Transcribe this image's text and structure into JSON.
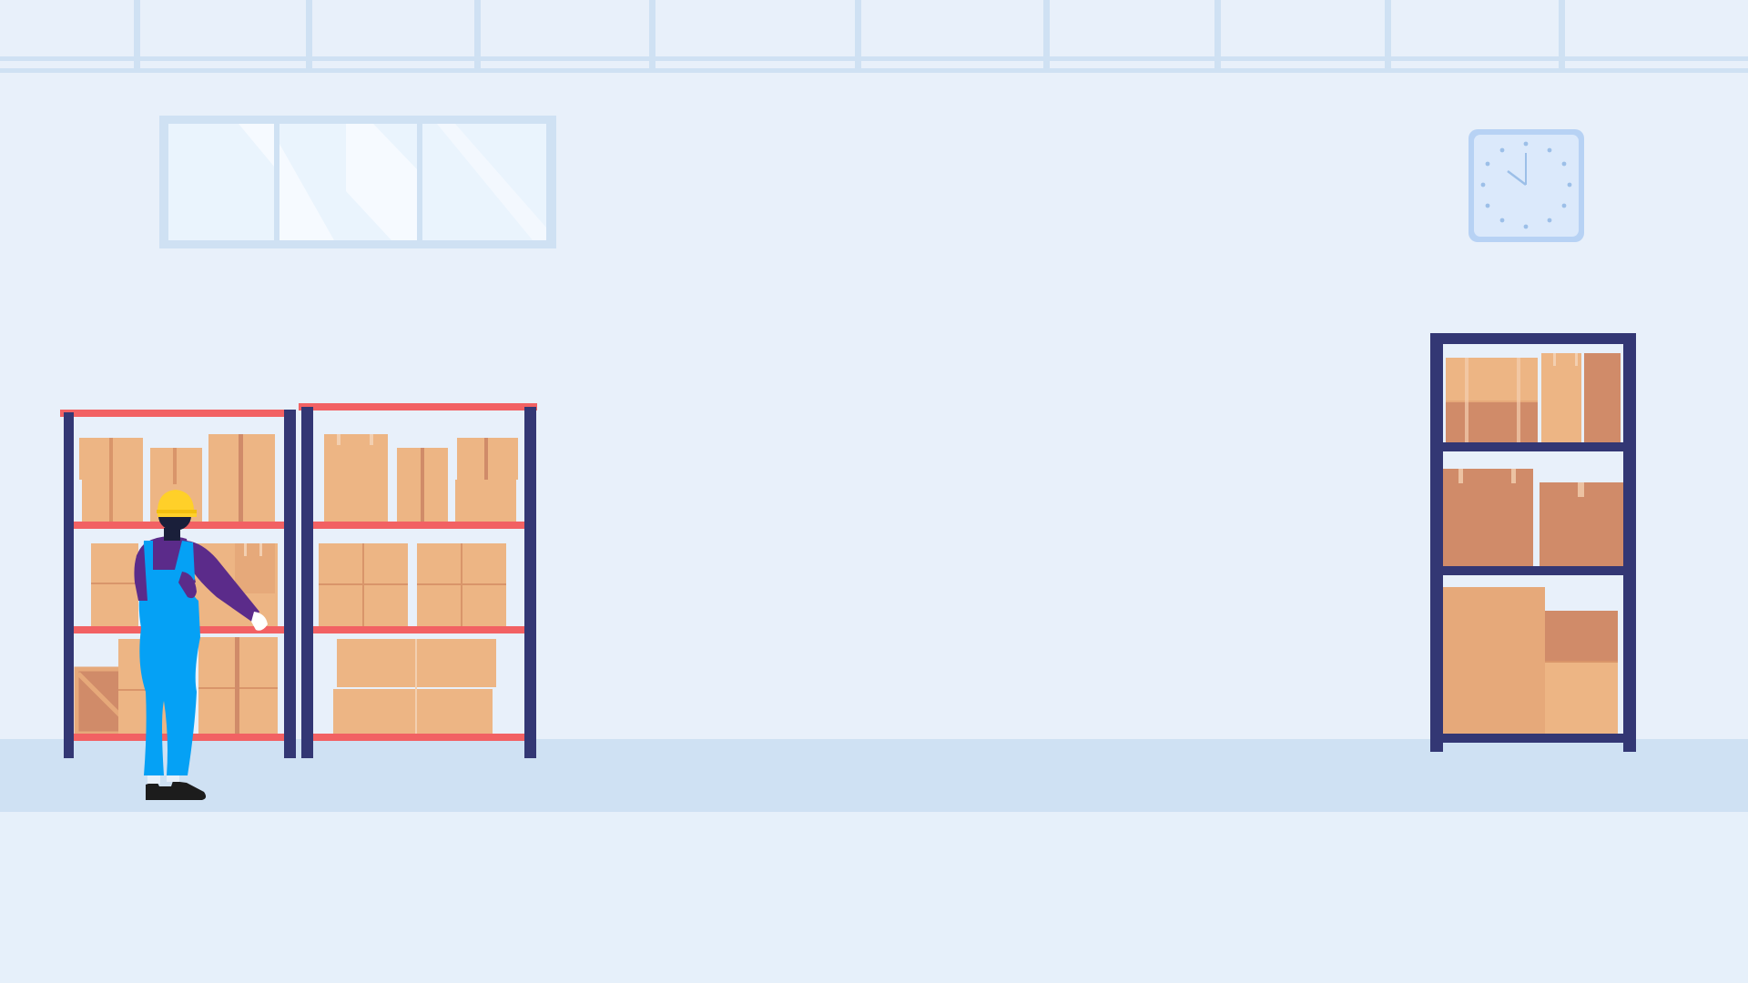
{
  "scene": {
    "kind": "warehouse-illustration",
    "colors": {
      "wall": "#e8f0fa",
      "floor_band": "#cfe1f3",
      "floor": "#e6f0fa",
      "ceiling_beam": "#cfe1f3",
      "window_frame": "#cfe1f3",
      "window_glass": "#eaf4fd",
      "window_glare": "#f6faff",
      "clock_face": "#dbe9fb",
      "clock_rim": "#b7d2f4",
      "clock_marks": "#9cbfe8",
      "rack_post": "#333774",
      "rack_shelf_red": "#f26163",
      "box_light": "#edb584",
      "box_mid": "#e6a97a",
      "box_dark": "#d08b69",
      "box_tape": "#d9956a",
      "helmet": "#ffd029",
      "shirt": "#5b2b8a",
      "overalls": "#05a1f5",
      "skin_dark": "#1a1f3a",
      "shoes": "#1c1c1c"
    },
    "objects": [
      "window",
      "wall-clock",
      "left-rack",
      "middle-rack",
      "right-rack",
      "worker"
    ],
    "clock": {
      "time_shown": "10:00"
    }
  }
}
